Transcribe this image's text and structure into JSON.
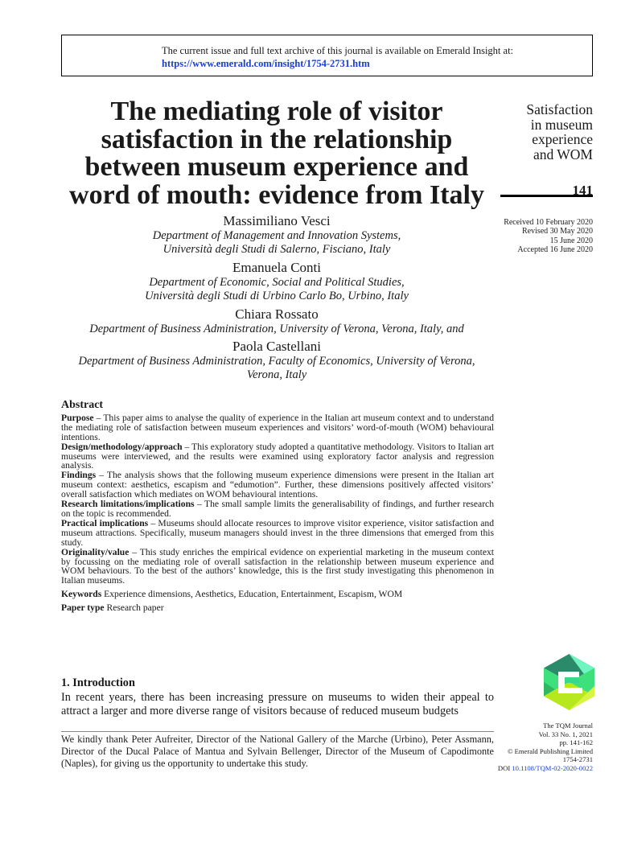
{
  "header_box": {
    "line1": "The current issue and full text archive of this journal is available on Emerald Insight at:",
    "link": "https://www.emerald.com/insight/1754-2731.htm"
  },
  "title_lines": [
    "The mediating role of visitor",
    "satisfaction in the relationship",
    "between museum experience and",
    "word of mouth: evidence from Italy"
  ],
  "running_title_lines": [
    "Satisfaction",
    "in museum",
    "experience",
    "and WOM"
  ],
  "page_number": "141",
  "dates": [
    "Received 10 February 2020",
    "Revised 30 May 2020",
    "15 June 2020",
    "Accepted 16 June 2020"
  ],
  "authors": [
    {
      "name": "Massimiliano Vesci",
      "affiliation": [
        "Department of Management and Innovation Systems,",
        "Università degli Studi di Salerno, Fisciano, Italy"
      ]
    },
    {
      "name": "Emanuela Conti",
      "affiliation": [
        "Department of Economic, Social and Political Studies,",
        "Università degli Studi di Urbino Carlo Bo, Urbino, Italy"
      ]
    },
    {
      "name": "Chiara Rossato",
      "affiliation": [
        "Department of Business Administration, University of Verona, Verona, Italy, and"
      ]
    },
    {
      "name": "Paola Castellani",
      "affiliation": [
        "Department of Business Administration, Faculty of Economics, University of Verona,",
        "Verona, Italy"
      ]
    }
  ],
  "abstract": {
    "heading": "Abstract",
    "sections": [
      {
        "label": "Purpose",
        "text": " – This paper aims to analyse the quality of experience in the Italian art museum context and to understand the mediating role of satisfaction between museum experiences and visitors’ word-of-mouth (WOM) behavioural intentions."
      },
      {
        "label": "Design/methodology/approach",
        "text": " – This exploratory study adopted a quantitative methodology. Visitors to Italian art museums were interviewed, and the results were examined using exploratory factor analysis and regression analysis."
      },
      {
        "label": "Findings",
        "text": " – The analysis shows that the following museum experience dimensions were present in the Italian art museum context: aesthetics, escapism and “edumotion”. Further, these dimensions positively affected visitors’ overall satisfaction which mediates on WOM behavioural intentions."
      },
      {
        "label": "Research limitations/implications",
        "text": " – The small sample limits the generalisability of findings, and further research on the topic is recommended."
      },
      {
        "label": "Practical implications",
        "text": " – Museums should allocate resources to improve visitor experience, visitor satisfaction and museum attractions. Specifically, museum managers should invest in the three dimensions that emerged from this study."
      },
      {
        "label": "Originality/value",
        "text": " – This study enriches the empirical evidence on experiential marketing in the museum context by focussing on the mediating role of overall satisfaction in the relationship between museum experience and WOM behaviours. To the best of the authors’ knowledge, this is the first study investigating this phenomenon in Italian museums."
      }
    ],
    "keywords_label": "Keywords",
    "keywords": " Experience dimensions, Aesthetics, Education, Entertainment, Escapism, WOM",
    "paper_type_label": "Paper type",
    "paper_type": " Research paper"
  },
  "introduction": {
    "heading": "1. Introduction",
    "text": "In recent years, there has been increasing pressure on museums to widen their appeal to attract a larger and more diverse range of visitors because of reduced museum budgets"
  },
  "footnote": "We kindly thank Peter Aufreiter, Director of the National Gallery of the Marche (Urbino), Peter Assmann, Director of the Ducal Palace of Mantua and Sylvain Bellenger, Director of the Museum of Capodimonte (Naples), for giving us the opportunity to undertake this study.",
  "journal_info": {
    "name": "The TQM Journal",
    "volume": "Vol. 33 No. 1, 2021",
    "pages": "pp. 141-162",
    "copyright": "© Emerald Publishing Limited",
    "issn": "1754-2731",
    "doi_label": "DOI ",
    "doi": "10.1108/TQM-02-2020-0022"
  },
  "logo": {
    "name": "emerald-logo",
    "colors": [
      "#2a8a6a",
      "#3de07a",
      "#6ff5c0",
      "#2fb860",
      "#b7e81e",
      "#d8f542"
    ]
  },
  "colors": {
    "link": "#1a3fd6"
  }
}
